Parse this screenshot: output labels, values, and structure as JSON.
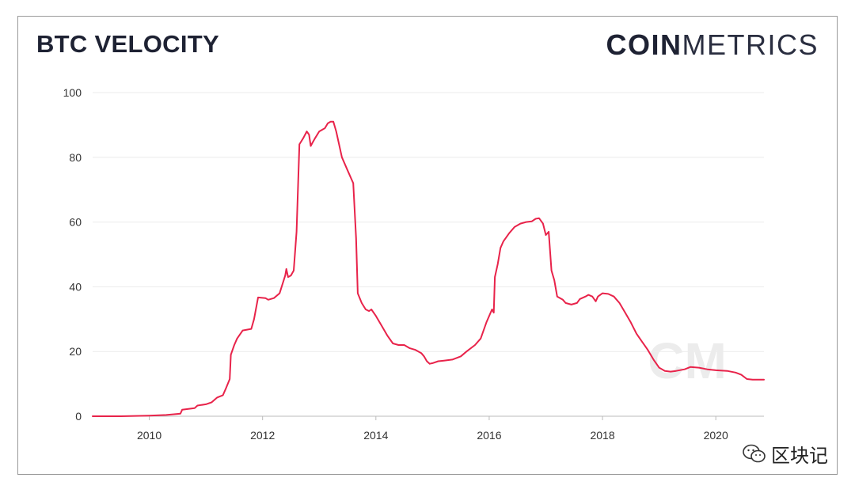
{
  "header": {
    "title": "BTC VELOCITY",
    "brand_bold": "COIN",
    "brand_light": "METRICS"
  },
  "watermark": {
    "chart_mark": "CM",
    "channel_name": "区块记",
    "channel_icon": "wechat-icon"
  },
  "colors": {
    "line": "#e8234a",
    "text": "#1e2233",
    "grid": "#ebebeb"
  },
  "chart_data": {
    "type": "line",
    "title": "BTC VELOCITY",
    "xlabel": "",
    "ylabel": "",
    "xlim": [
      2009.0,
      2020.85
    ],
    "ylim": [
      0,
      100
    ],
    "x_ticks": [
      2010,
      2012,
      2014,
      2016,
      2018,
      2020
    ],
    "y_ticks": [
      0,
      20,
      40,
      60,
      80,
      100
    ],
    "grid": "horizontal",
    "legend": "none",
    "series": [
      {
        "points": [
          [
            2009.0,
            0
          ],
          [
            2009.5,
            0
          ],
          [
            2010.0,
            0.2
          ],
          [
            2010.3,
            0.4
          ],
          [
            2010.55,
            0.8
          ],
          [
            2010.58,
            2
          ],
          [
            2010.8,
            2.5
          ],
          [
            2010.85,
            3.3
          ],
          [
            2011.0,
            3.7
          ],
          [
            2011.1,
            4.3
          ],
          [
            2011.2,
            5.8
          ],
          [
            2011.3,
            6.5
          ],
          [
            2011.35,
            8.5
          ],
          [
            2011.42,
            11.5
          ],
          [
            2011.44,
            19
          ],
          [
            2011.5,
            22
          ],
          [
            2011.55,
            24
          ],
          [
            2011.65,
            26.5
          ],
          [
            2011.8,
            27
          ],
          [
            2011.85,
            30
          ],
          [
            2011.92,
            36.7
          ],
          [
            2012.05,
            36.5
          ],
          [
            2012.1,
            36
          ],
          [
            2012.2,
            36.5
          ],
          [
            2012.3,
            38
          ],
          [
            2012.4,
            43.5
          ],
          [
            2012.42,
            45.5
          ],
          [
            2012.45,
            43
          ],
          [
            2012.5,
            43.5
          ],
          [
            2012.55,
            45
          ],
          [
            2012.6,
            57
          ],
          [
            2012.65,
            84
          ],
          [
            2012.72,
            86
          ],
          [
            2012.78,
            88
          ],
          [
            2012.82,
            87
          ],
          [
            2012.85,
            83.5
          ],
          [
            2012.88,
            84.5
          ],
          [
            2012.93,
            86
          ],
          [
            2013.0,
            88
          ],
          [
            2013.1,
            89
          ],
          [
            2013.15,
            90.5
          ],
          [
            2013.2,
            91
          ],
          [
            2013.25,
            91
          ],
          [
            2013.3,
            88
          ],
          [
            2013.4,
            80
          ],
          [
            2013.5,
            76
          ],
          [
            2013.6,
            72
          ],
          [
            2013.65,
            55
          ],
          [
            2013.68,
            38
          ],
          [
            2013.75,
            35
          ],
          [
            2013.82,
            33
          ],
          [
            2013.88,
            32.5
          ],
          [
            2013.92,
            33
          ],
          [
            2014.0,
            31
          ],
          [
            2014.1,
            28
          ],
          [
            2014.2,
            25
          ],
          [
            2014.3,
            22.5
          ],
          [
            2014.4,
            22
          ],
          [
            2014.5,
            22
          ],
          [
            2014.6,
            21
          ],
          [
            2014.7,
            20.5
          ],
          [
            2014.8,
            19.5
          ],
          [
            2014.85,
            18.5
          ],
          [
            2014.9,
            17
          ],
          [
            2014.95,
            16.2
          ],
          [
            2015.0,
            16.4
          ],
          [
            2015.1,
            17
          ],
          [
            2015.2,
            17.2
          ],
          [
            2015.35,
            17.5
          ],
          [
            2015.5,
            18.5
          ],
          [
            2015.6,
            20
          ],
          [
            2015.75,
            22
          ],
          [
            2015.85,
            24
          ],
          [
            2015.95,
            29
          ],
          [
            2016.05,
            33
          ],
          [
            2016.08,
            32
          ],
          [
            2016.1,
            43
          ],
          [
            2016.15,
            47
          ],
          [
            2016.2,
            52
          ],
          [
            2016.25,
            54
          ],
          [
            2016.35,
            56.5
          ],
          [
            2016.45,
            58.5
          ],
          [
            2016.55,
            59.5
          ],
          [
            2016.65,
            60
          ],
          [
            2016.75,
            60.2
          ],
          [
            2016.82,
            61
          ],
          [
            2016.88,
            61.2
          ],
          [
            2016.95,
            59.5
          ],
          [
            2017.0,
            56
          ],
          [
            2017.05,
            57
          ],
          [
            2017.1,
            45
          ],
          [
            2017.15,
            42
          ],
          [
            2017.2,
            37
          ],
          [
            2017.3,
            36
          ],
          [
            2017.35,
            35
          ],
          [
            2017.45,
            34.5
          ],
          [
            2017.55,
            35
          ],
          [
            2017.6,
            36.2
          ],
          [
            2017.7,
            37
          ],
          [
            2017.75,
            37.5
          ],
          [
            2017.82,
            37
          ],
          [
            2017.88,
            35.5
          ],
          [
            2017.92,
            37
          ],
          [
            2018.0,
            38
          ],
          [
            2018.1,
            37.8
          ],
          [
            2018.2,
            37
          ],
          [
            2018.3,
            35
          ],
          [
            2018.4,
            32
          ],
          [
            2018.5,
            29
          ],
          [
            2018.6,
            25.5
          ],
          [
            2018.7,
            23
          ],
          [
            2018.8,
            20.5
          ],
          [
            2018.9,
            17.5
          ],
          [
            2019.0,
            15
          ],
          [
            2019.1,
            14
          ],
          [
            2019.2,
            13.8
          ],
          [
            2019.3,
            14
          ],
          [
            2019.45,
            14.5
          ],
          [
            2019.55,
            15.2
          ],
          [
            2019.7,
            15
          ],
          [
            2019.85,
            14.5
          ],
          [
            2020.0,
            14.2
          ],
          [
            2020.2,
            14
          ],
          [
            2020.35,
            13.5
          ],
          [
            2020.45,
            12.8
          ],
          [
            2020.55,
            11.5
          ],
          [
            2020.65,
            11.3
          ],
          [
            2020.85,
            11.3
          ]
        ]
      }
    ]
  }
}
